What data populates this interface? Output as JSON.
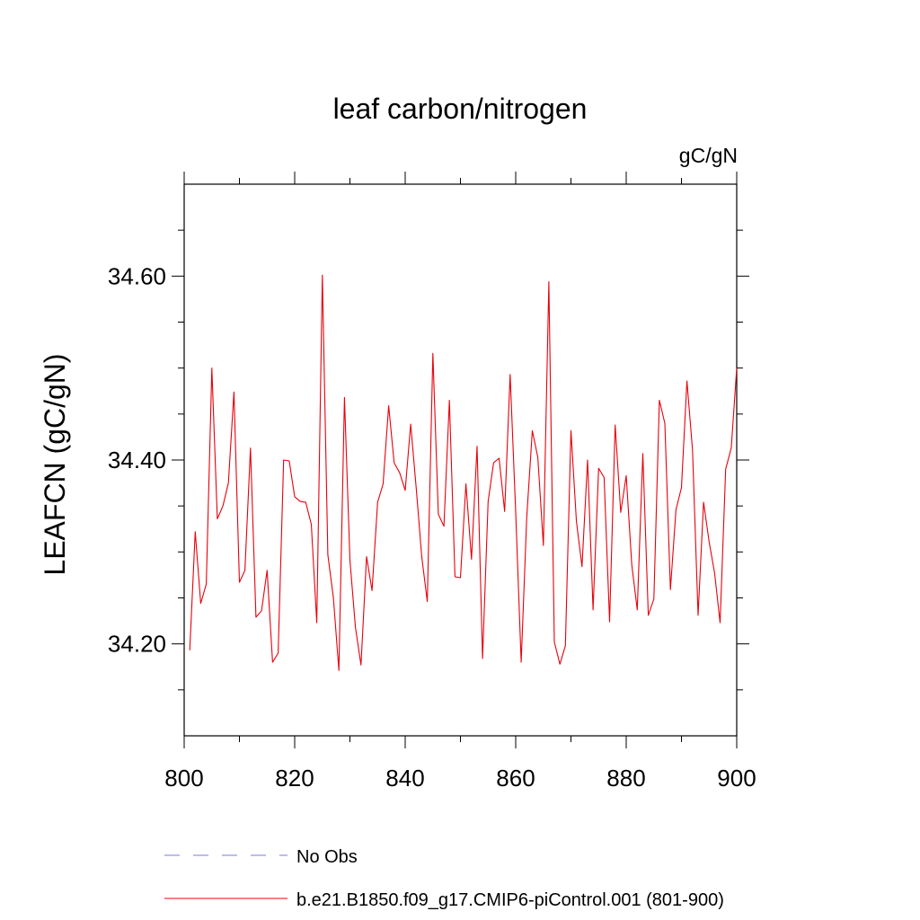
{
  "chart_data": {
    "type": "line",
    "title": "leaf carbon/nitrogen",
    "units": "gC/gN",
    "ylabel": "LEAFCN  (gC/gN)",
    "xlabel": "",
    "xlim": [
      800,
      900
    ],
    "ylim": [
      34.1,
      34.7
    ],
    "x_ticks": [
      {
        "value": 800,
        "label": "800"
      },
      {
        "value": 820,
        "label": "820"
      },
      {
        "value": 840,
        "label": "840"
      },
      {
        "value": 860,
        "label": "860"
      },
      {
        "value": 880,
        "label": "880"
      },
      {
        "value": 900,
        "label": "900"
      }
    ],
    "x_minor_ticks": [
      810,
      830,
      850,
      870,
      890
    ],
    "y_ticks": [
      {
        "value": 34.2,
        "label": "34.20"
      },
      {
        "value": 34.4,
        "label": "34.40"
      },
      {
        "value": 34.6,
        "label": "34.60"
      }
    ],
    "y_minor_ticks": [
      34.15,
      34.25,
      34.3,
      34.35,
      34.45,
      34.5,
      34.55,
      34.65
    ],
    "grid": false,
    "legend_position": "bottom",
    "legend": [
      {
        "label": "No Obs",
        "color": "#7b7bd6",
        "dash": true
      },
      {
        "label": "b.e21.B1850.f09_g17.CMIP6-piControl.001 (801-900)",
        "color": "#e8000b",
        "dash": false
      }
    ],
    "series": [
      {
        "name": "b.e21.B1850.f09_g17.CMIP6-piControl.001 (801-900)",
        "color": "#e8000b",
        "x": [
          801,
          802,
          803,
          804,
          805,
          806,
          807,
          808,
          809,
          810,
          811,
          812,
          813,
          814,
          815,
          816,
          817,
          818,
          819,
          820,
          821,
          822,
          823,
          824,
          825,
          826,
          827,
          828,
          829,
          830,
          831,
          832,
          833,
          834,
          835,
          836,
          837,
          838,
          839,
          840,
          841,
          842,
          843,
          844,
          845,
          846,
          847,
          848,
          849,
          850,
          851,
          852,
          853,
          854,
          855,
          856,
          857,
          858,
          859,
          860,
          861,
          862,
          863,
          864,
          865,
          866,
          867,
          868,
          869,
          870,
          871,
          872,
          873,
          874,
          875,
          876,
          877,
          878,
          879,
          880,
          881,
          882,
          883,
          884,
          885,
          886,
          887,
          888,
          889,
          890,
          891,
          892,
          893,
          894,
          895,
          896,
          897,
          898,
          899,
          900
        ],
        "values": [
          34.193,
          34.322,
          34.244,
          34.265,
          34.5,
          34.336,
          34.35,
          34.375,
          34.474,
          34.267,
          34.28,
          34.413,
          34.229,
          34.236,
          34.28,
          34.18,
          34.19,
          34.4,
          34.399,
          34.36,
          34.355,
          34.354,
          34.33,
          34.223,
          34.601,
          34.297,
          34.25,
          34.171,
          34.468,
          34.291,
          34.218,
          34.177,
          34.295,
          34.258,
          34.354,
          34.374,
          34.459,
          34.397,
          34.386,
          34.367,
          34.439,
          34.369,
          34.295,
          34.246,
          34.516,
          34.341,
          34.328,
          34.465,
          34.273,
          34.272,
          34.374,
          34.292,
          34.415,
          34.184,
          34.355,
          34.397,
          34.402,
          34.344,
          34.493,
          34.343,
          34.18,
          34.338,
          34.432,
          34.403,
          34.307,
          34.594,
          34.202,
          34.178,
          34.198,
          34.432,
          34.333,
          34.284,
          34.4,
          34.237,
          34.391,
          34.381,
          34.224,
          34.438,
          34.343,
          34.383,
          34.286,
          34.237,
          34.407,
          34.231,
          34.249,
          34.465,
          34.44,
          34.259,
          34.346,
          34.37,
          34.486,
          34.411,
          34.231,
          34.354,
          34.311,
          34.277,
          34.223,
          34.39,
          34.413,
          34.5
        ]
      }
    ]
  }
}
